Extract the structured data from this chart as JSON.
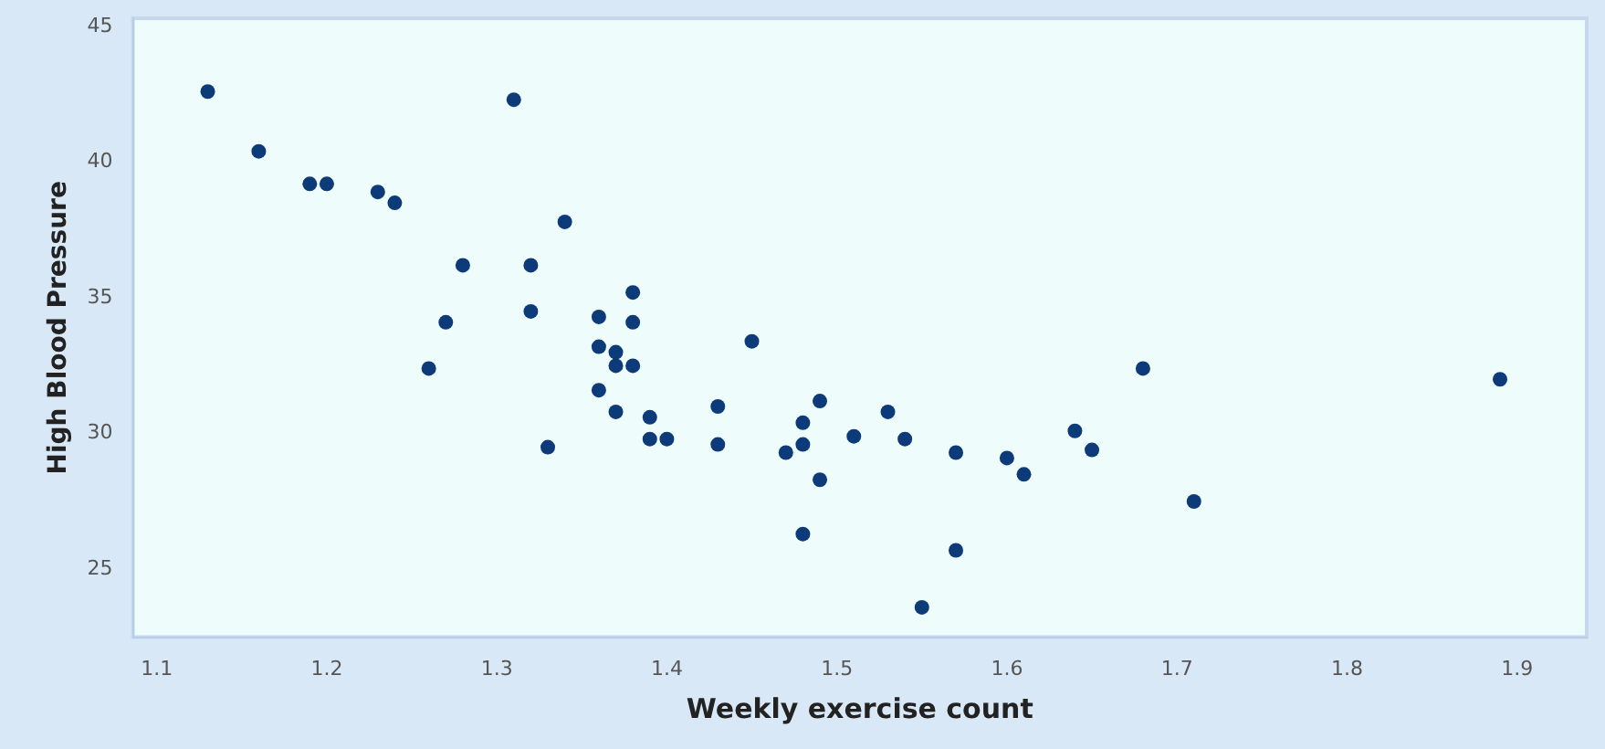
{
  "chart_data": {
    "type": "scatter",
    "xlabel": "Weekly exercise count",
    "ylabel": "High Blood Pressure",
    "xlim": [
      1.086,
      1.941
    ],
    "ylim": [
      22.5,
      45.3
    ],
    "xticks": [
      {
        "value": 1.1,
        "label": "1.1"
      },
      {
        "value": 1.2,
        "label": "1.2"
      },
      {
        "value": 1.3,
        "label": "1.3"
      },
      {
        "value": 1.4,
        "label": "1.4"
      },
      {
        "value": 1.5,
        "label": "1.5"
      },
      {
        "value": 1.6,
        "label": "1.6"
      },
      {
        "value": 1.7,
        "label": "1.7"
      },
      {
        "value": 1.8,
        "label": "1.8"
      },
      {
        "value": 1.9,
        "label": "1.9"
      }
    ],
    "yticks": [
      25,
      30,
      35,
      40,
      45
    ],
    "grid": false,
    "legend": false,
    "marker": "circle",
    "series": [
      {
        "color": "#0d3a78",
        "x": [
          1.13,
          1.16,
          1.19,
          1.2,
          1.23,
          1.24,
          1.31,
          1.34,
          1.28,
          1.32,
          1.32,
          1.27,
          1.26,
          1.33,
          1.38,
          1.36,
          1.38,
          1.36,
          1.37,
          1.37,
          1.38,
          1.36,
          1.37,
          1.39,
          1.39,
          1.4,
          1.43,
          1.43,
          1.45,
          1.47,
          1.48,
          1.48,
          1.49,
          1.49,
          1.48,
          1.51,
          1.53,
          1.54,
          1.57,
          1.57,
          1.55,
          1.6,
          1.61,
          1.64,
          1.65,
          1.68,
          1.71,
          1.89
        ],
        "values": [
          42.6,
          40.4,
          39.2,
          39.2,
          38.9,
          38.5,
          42.3,
          37.8,
          36.2,
          36.2,
          34.5,
          34.1,
          32.4,
          29.5,
          35.2,
          34.3,
          34.1,
          33.2,
          33.0,
          32.5,
          32.5,
          31.6,
          30.8,
          30.6,
          29.8,
          29.8,
          31.0,
          29.6,
          33.4,
          29.3,
          30.4,
          29.6,
          31.2,
          28.3,
          26.3,
          29.9,
          30.8,
          29.8,
          29.3,
          25.7,
          23.6,
          29.1,
          28.5,
          30.1,
          29.4,
          32.4,
          27.5,
          32.0
        ]
      }
    ]
  }
}
